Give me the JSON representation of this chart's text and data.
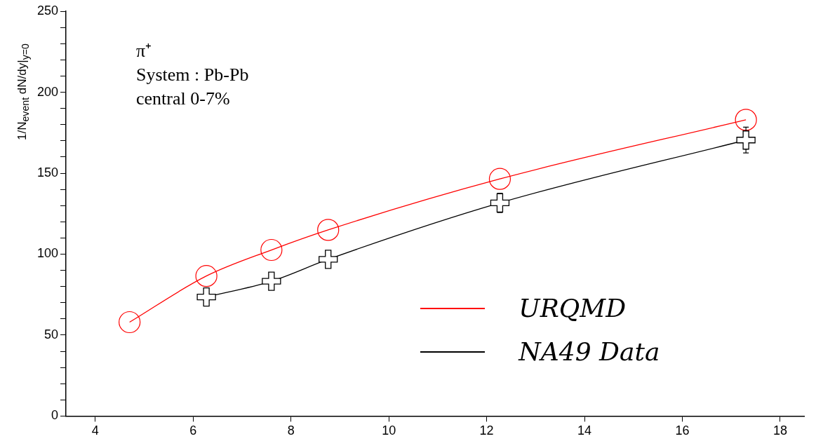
{
  "chart_data": {
    "type": "line",
    "ylabel": "1/N$_{event}$ dN/dy|$_{y=0}$",
    "annotations": [
      "π⁺",
      "System : Pb-Pb",
      "central 0-7%"
    ],
    "xlim": [
      3.4,
      18.5
    ],
    "xticks": [
      4,
      6,
      8,
      10,
      12,
      14,
      16,
      18
    ],
    "ylim": [
      0,
      250
    ],
    "yticks": [
      0,
      {
        "value": 10,
        "label": null
      },
      {
        "value": 20,
        "label": null
      },
      {
        "value": 30,
        "label": null
      },
      {
        "value": 40,
        "label": null
      },
      50,
      {
        "value": 60,
        "label": null
      },
      {
        "value": 70,
        "label": null
      },
      {
        "value": 80,
        "label": null
      },
      {
        "value": 90,
        "label": null
      },
      100,
      {
        "value": 110,
        "label": null
      },
      {
        "value": 120,
        "label": null
      },
      {
        "value": 130,
        "label": null
      },
      {
        "value": 140,
        "label": null
      },
      150,
      {
        "value": 160,
        "label": null
      },
      {
        "value": 170,
        "label": null
      },
      {
        "value": 180,
        "label": null
      },
      {
        "value": 190,
        "label": null
      },
      200,
      {
        "value": 210,
        "label": null
      },
      {
        "value": 220,
        "label": null
      },
      {
        "value": 230,
        "label": null
      },
      {
        "value": 240,
        "label": null
      },
      250
    ],
    "grid": false,
    "legend": "bottom right",
    "series": [
      {
        "name": "URQMD",
        "color": "#ff0000",
        "marker": "circle",
        "x": [
          4.7,
          6.27,
          7.6,
          8.76,
          12.27,
          17.3
        ],
        "values": [
          58,
          86.5,
          102.6,
          115,
          146.5,
          183
        ]
      },
      {
        "name": "NA49 Data",
        "color": "#000000",
        "marker": "cross",
        "x": [
          6.27,
          7.6,
          8.76,
          12.27,
          17.3
        ],
        "values": [
          73.5,
          83.3,
          96.8,
          131.7,
          170.5
        ],
        "errors": [
          null,
          null,
          null,
          6,
          8
        ]
      }
    ]
  }
}
